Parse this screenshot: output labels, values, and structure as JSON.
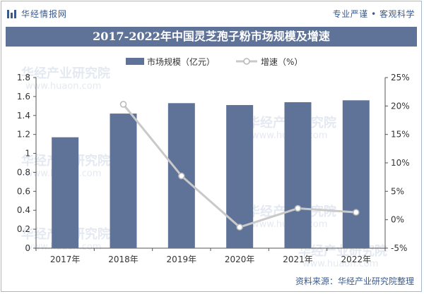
{
  "header": {
    "brand_left": "华经情报网",
    "brand_right": "专业严谨 • 客观科学"
  },
  "watermark": {
    "text": "华经产业研究院",
    "url": "www.huaon.com"
  },
  "chart_data": {
    "type": "bar",
    "title": "2017-2022年中国灵芝孢子粉市场规模及增速",
    "categories": [
      "2017年",
      "2018年",
      "2019年",
      "2020年",
      "2021年",
      "2022年"
    ],
    "series": [
      {
        "name": "市场规模（亿元）",
        "type": "bar",
        "axis": "left",
        "color": "#5f7399",
        "values": [
          1.17,
          1.42,
          1.53,
          1.51,
          1.54,
          1.56
        ]
      },
      {
        "name": "增速（%）",
        "type": "line",
        "axis": "right",
        "color": "#c9c9c9",
        "values": [
          null,
          20.3,
          7.7,
          -1.3,
          2.0,
          1.3
        ]
      }
    ],
    "y_left": {
      "min": 0,
      "max": 1.8,
      "ticks": [
        "0",
        "0.2",
        "0.4",
        "0.6",
        "0.8",
        "1",
        "1.2",
        "1.4",
        "1.6",
        "1.8"
      ]
    },
    "y_right": {
      "min": -5,
      "max": 25,
      "ticks": [
        "-5%",
        "0%",
        "5%",
        "10%",
        "15%",
        "20%",
        "25%"
      ]
    },
    "legend_position": "top",
    "grid": false
  },
  "source": "资料来源：华经产业研究院整理"
}
